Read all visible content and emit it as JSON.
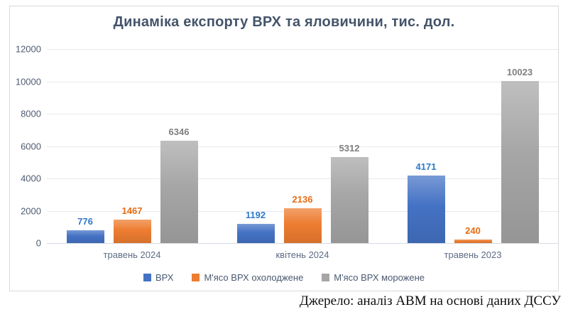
{
  "chart_data": {
    "type": "bar",
    "title": "Динаміка експорту ВРХ та яловичини, тис. дол.",
    "categories": [
      "травень 2024",
      "квітень 2024",
      "травень 2023"
    ],
    "series": [
      {
        "name": "ВРХ",
        "values": [
          776,
          1192,
          4171
        ],
        "color": "#4472C4",
        "label_color": "#2E79C9"
      },
      {
        "name": "М'ясо ВРХ охолоджене",
        "values": [
          1467,
          2136,
          240
        ],
        "color": "#ED7D31",
        "label_color": "#E66C12"
      },
      {
        "name": "М'ясо ВРХ морожене",
        "values": [
          6346,
          5312,
          10023
        ],
        "color": "#A6A6A6",
        "label_color": "#7F7F7F"
      }
    ],
    "ylim": [
      0,
      12000
    ],
    "yticks": [
      0,
      2000,
      4000,
      6000,
      8000,
      10000,
      12000
    ],
    "grid": true,
    "legend_position": "bottom",
    "xlabel": "",
    "ylabel": ""
  },
  "source": "Джерело: аналіз АВМ на основі даних ДССУ",
  "colors": {
    "title": "#44546A",
    "axis_labels": "#4F5B70",
    "category_labels": "#5E6B84",
    "gridline": "#E6EAEF",
    "baseline": "#D5DAE2",
    "card_border": "#D9D9D9",
    "background": "#FFFFFF"
  }
}
